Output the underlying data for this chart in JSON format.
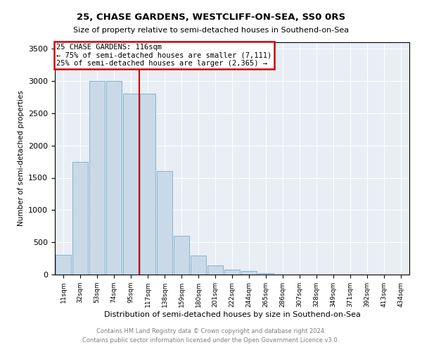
{
  "title": "25, CHASE GARDENS, WESTCLIFF-ON-SEA, SS0 0RS",
  "subtitle": "Size of property relative to semi-detached houses in Southend-on-Sea",
  "xlabel": "Distribution of semi-detached houses by size in Southend-on-Sea",
  "ylabel": "Number of semi-detached properties",
  "footer_line1": "Contains HM Land Registry data © Crown copyright and database right 2024.",
  "footer_line2": "Contains public sector information licensed under the Open Government Licence v3.0.",
  "annotation_line1": "25 CHASE GARDENS: 116sqm",
  "annotation_line2": "← 75% of semi-detached houses are smaller (7,111)",
  "annotation_line3": "25% of semi-detached houses are larger (2,365) →",
  "categories": [
    "11sqm",
    "32sqm",
    "53sqm",
    "74sqm",
    "95sqm",
    "117sqm",
    "138sqm",
    "159sqm",
    "180sqm",
    "201sqm",
    "222sqm",
    "244sqm",
    "265sqm",
    "286sqm",
    "307sqm",
    "328sqm",
    "349sqm",
    "371sqm",
    "392sqm",
    "413sqm",
    "434sqm"
  ],
  "values": [
    310,
    1750,
    3000,
    3000,
    2800,
    2800,
    1600,
    600,
    300,
    140,
    80,
    50,
    20,
    5,
    2,
    1,
    0,
    0,
    0,
    0,
    0
  ],
  "bar_color": "#c9d9e8",
  "bar_edge_color": "#7aaac8",
  "vline_x": 4.5,
  "vline_color": "#cc0000",
  "ylim": [
    0,
    3600
  ],
  "background_color": "#e8eef4"
}
